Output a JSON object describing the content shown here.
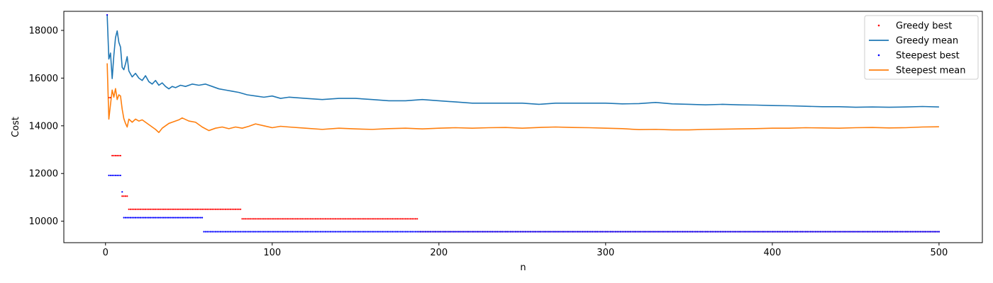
{
  "chart_data": {
    "type": "line",
    "title": "",
    "xlabel": "n",
    "ylabel": "Cost",
    "xlim": [
      -25,
      526
    ],
    "ylim": [
      9100,
      18800
    ],
    "xticks": [
      0,
      100,
      200,
      300,
      400,
      500
    ],
    "yticks": [
      10000,
      12000,
      14000,
      16000,
      18000
    ],
    "grid": false,
    "legend_position": "top-right",
    "series": [
      {
        "name": "Greedy best",
        "kind": "scatter",
        "color": "#ff0000",
        "segments": [
          {
            "x_from": 1,
            "x_to": 1,
            "y": 18650
          },
          {
            "x_from": 2,
            "x_to": 3,
            "y": 15180
          },
          {
            "x_from": 4,
            "x_to": 9,
            "y": 12750
          },
          {
            "x_from": 10,
            "x_to": 13,
            "y": 11050
          },
          {
            "x_from": 14,
            "x_to": 81,
            "y": 10500
          },
          {
            "x_from": 82,
            "x_to": 187,
            "y": 10100
          },
          {
            "x_from": 188,
            "x_to": 500,
            "y": 9560
          }
        ]
      },
      {
        "name": "Greedy mean",
        "kind": "line",
        "color": "#1f77b4",
        "points": [
          [
            1,
            18650
          ],
          [
            2,
            16800
          ],
          [
            3,
            17050
          ],
          [
            4,
            15980
          ],
          [
            5,
            16950
          ],
          [
            6,
            17700
          ],
          [
            7,
            17980
          ],
          [
            8,
            17500
          ],
          [
            9,
            17300
          ],
          [
            10,
            16450
          ],
          [
            11,
            16350
          ],
          [
            12,
            16600
          ],
          [
            13,
            16900
          ],
          [
            14,
            16300
          ],
          [
            16,
            16050
          ],
          [
            18,
            16200
          ],
          [
            20,
            16000
          ],
          [
            22,
            15900
          ],
          [
            24,
            16100
          ],
          [
            26,
            15850
          ],
          [
            28,
            15750
          ],
          [
            30,
            15900
          ],
          [
            32,
            15700
          ],
          [
            34,
            15800
          ],
          [
            36,
            15650
          ],
          [
            38,
            15550
          ],
          [
            40,
            15650
          ],
          [
            42,
            15600
          ],
          [
            45,
            15700
          ],
          [
            48,
            15650
          ],
          [
            52,
            15750
          ],
          [
            56,
            15700
          ],
          [
            60,
            15750
          ],
          [
            64,
            15650
          ],
          [
            68,
            15550
          ],
          [
            72,
            15500
          ],
          [
            76,
            15450
          ],
          [
            80,
            15400
          ],
          [
            85,
            15300
          ],
          [
            90,
            15250
          ],
          [
            95,
            15200
          ],
          [
            100,
            15250
          ],
          [
            105,
            15150
          ],
          [
            110,
            15200
          ],
          [
            120,
            15150
          ],
          [
            130,
            15100
          ],
          [
            140,
            15150
          ],
          [
            150,
            15150
          ],
          [
            160,
            15100
          ],
          [
            170,
            15050
          ],
          [
            180,
            15050
          ],
          [
            190,
            15100
          ],
          [
            200,
            15050
          ],
          [
            210,
            15000
          ],
          [
            220,
            14950
          ],
          [
            230,
            14950
          ],
          [
            240,
            14950
          ],
          [
            250,
            14950
          ],
          [
            260,
            14900
          ],
          [
            270,
            14950
          ],
          [
            280,
            14950
          ],
          [
            290,
            14950
          ],
          [
            300,
            14950
          ],
          [
            310,
            14920
          ],
          [
            320,
            14930
          ],
          [
            330,
            14980
          ],
          [
            340,
            14920
          ],
          [
            350,
            14900
          ],
          [
            360,
            14880
          ],
          [
            370,
            14900
          ],
          [
            380,
            14880
          ],
          [
            390,
            14870
          ],
          [
            400,
            14850
          ],
          [
            410,
            14840
          ],
          [
            420,
            14820
          ],
          [
            430,
            14800
          ],
          [
            440,
            14800
          ],
          [
            450,
            14780
          ],
          [
            460,
            14790
          ],
          [
            470,
            14780
          ],
          [
            480,
            14790
          ],
          [
            490,
            14810
          ],
          [
            500,
            14790
          ]
        ]
      },
      {
        "name": "Steepest best",
        "kind": "scatter",
        "color": "#0000ff",
        "segments": [
          {
            "x_from": 1,
            "x_to": 1,
            "y": 18650
          },
          {
            "x_from": 2,
            "x_to": 9,
            "y": 11920
          },
          {
            "x_from": 10,
            "x_to": 10,
            "y": 11230
          },
          {
            "x_from": 11,
            "x_to": 58,
            "y": 10150
          },
          {
            "x_from": 59,
            "x_to": 500,
            "y": 9560
          }
        ]
      },
      {
        "name": "Steepest mean",
        "kind": "line",
        "color": "#ff7f0e",
        "points": [
          [
            1,
            16620
          ],
          [
            2,
            14280
          ],
          [
            3,
            14900
          ],
          [
            4,
            15500
          ],
          [
            5,
            15200
          ],
          [
            6,
            15560
          ],
          [
            7,
            15100
          ],
          [
            8,
            15300
          ],
          [
            9,
            15250
          ],
          [
            10,
            14700
          ],
          [
            11,
            14300
          ],
          [
            12,
            14100
          ],
          [
            13,
            13950
          ],
          [
            14,
            14280
          ],
          [
            16,
            14150
          ],
          [
            18,
            14280
          ],
          [
            20,
            14200
          ],
          [
            22,
            14250
          ],
          [
            24,
            14150
          ],
          [
            26,
            14050
          ],
          [
            28,
            13950
          ],
          [
            30,
            13850
          ],
          [
            32,
            13720
          ],
          [
            34,
            13900
          ],
          [
            36,
            14000
          ],
          [
            38,
            14100
          ],
          [
            40,
            14150
          ],
          [
            44,
            14250
          ],
          [
            46,
            14330
          ],
          [
            50,
            14200
          ],
          [
            54,
            14150
          ],
          [
            58,
            13950
          ],
          [
            62,
            13800
          ],
          [
            66,
            13900
          ],
          [
            70,
            13950
          ],
          [
            74,
            13880
          ],
          [
            78,
            13950
          ],
          [
            82,
            13900
          ],
          [
            86,
            13980
          ],
          [
            90,
            14080
          ],
          [
            95,
            14000
          ],
          [
            100,
            13920
          ],
          [
            105,
            13980
          ],
          [
            110,
            13950
          ],
          [
            120,
            13900
          ],
          [
            130,
            13850
          ],
          [
            140,
            13900
          ],
          [
            150,
            13870
          ],
          [
            160,
            13850
          ],
          [
            170,
            13880
          ],
          [
            180,
            13900
          ],
          [
            190,
            13870
          ],
          [
            200,
            13900
          ],
          [
            210,
            13920
          ],
          [
            220,
            13900
          ],
          [
            230,
            13920
          ],
          [
            240,
            13930
          ],
          [
            250,
            13900
          ],
          [
            260,
            13930
          ],
          [
            270,
            13950
          ],
          [
            280,
            13930
          ],
          [
            290,
            13920
          ],
          [
            300,
            13900
          ],
          [
            310,
            13880
          ],
          [
            320,
            13840
          ],
          [
            330,
            13850
          ],
          [
            340,
            13830
          ],
          [
            350,
            13830
          ],
          [
            360,
            13850
          ],
          [
            370,
            13860
          ],
          [
            380,
            13870
          ],
          [
            390,
            13880
          ],
          [
            400,
            13900
          ],
          [
            410,
            13900
          ],
          [
            420,
            13920
          ],
          [
            430,
            13910
          ],
          [
            440,
            13900
          ],
          [
            450,
            13920
          ],
          [
            460,
            13930
          ],
          [
            470,
            13910
          ],
          [
            480,
            13920
          ],
          [
            490,
            13950
          ],
          [
            500,
            13960
          ]
        ]
      }
    ]
  }
}
